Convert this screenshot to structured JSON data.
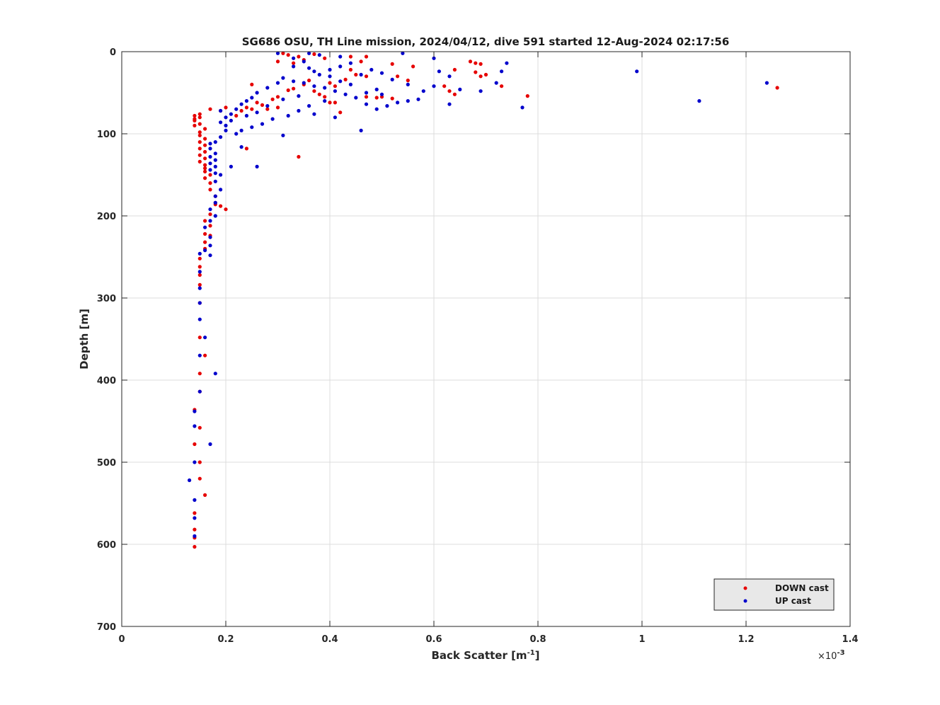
{
  "chart_data": {
    "type": "scatter",
    "title": "SG686 OSU, TH Line mission, 2024/04/12, dive 591 started 12-Aug-2024 02:17:56",
    "xlabel": "Back Scatter [m",
    "xlabel_exponent": "-1",
    "xlabel_suffix": "]",
    "x_multiplier_label": "×10",
    "x_multiplier_exponent": "-3",
    "ylabel": "Depth [m]",
    "xlim": [
      0,
      1.4
    ],
    "ylim": [
      0,
      700
    ],
    "y_reversed": true,
    "grid": true,
    "legend_placement": "bottom-right",
    "x_ticks": [
      "0",
      "0.2",
      "0.4",
      "0.6",
      "0.8",
      "1",
      "1.2",
      "1.4"
    ],
    "y_ticks": [
      "0",
      "100",
      "200",
      "300",
      "400",
      "500",
      "600",
      "700"
    ],
    "series": [
      {
        "name": "DOWN cast",
        "color": "#e60000",
        "points": [
          [
            0.31,
            2
          ],
          [
            0.32,
            4
          ],
          [
            0.34,
            6
          ],
          [
            0.37,
            3
          ],
          [
            0.39,
            8
          ],
          [
            0.3,
            12
          ],
          [
            0.33,
            14
          ],
          [
            0.35,
            10
          ],
          [
            0.44,
            6
          ],
          [
            0.46,
            12
          ],
          [
            0.47,
            6
          ],
          [
            0.52,
            15
          ],
          [
            0.56,
            18
          ],
          [
            0.64,
            22
          ],
          [
            0.67,
            12
          ],
          [
            0.68,
            14
          ],
          [
            0.69,
            15
          ],
          [
            0.68,
            25
          ],
          [
            0.69,
            30
          ],
          [
            0.7,
            28
          ],
          [
            0.62,
            42
          ],
          [
            0.63,
            48
          ],
          [
            0.64,
            52
          ],
          [
            0.73,
            42
          ],
          [
            0.78,
            54
          ],
          [
            1.26,
            44
          ],
          [
            0.53,
            30
          ],
          [
            0.55,
            35
          ],
          [
            0.47,
            30
          ],
          [
            0.45,
            28
          ],
          [
            0.44,
            22
          ],
          [
            0.43,
            34
          ],
          [
            0.41,
            42
          ],
          [
            0.4,
            38
          ],
          [
            0.36,
            35
          ],
          [
            0.35,
            40
          ],
          [
            0.33,
            45
          ],
          [
            0.32,
            47
          ],
          [
            0.37,
            48
          ],
          [
            0.38,
            52
          ],
          [
            0.39,
            55
          ],
          [
            0.47,
            55
          ],
          [
            0.49,
            56
          ],
          [
            0.5,
            55
          ],
          [
            0.52,
            57
          ],
          [
            0.41,
            62
          ],
          [
            0.4,
            62
          ],
          [
            0.42,
            74
          ],
          [
            0.3,
            55
          ],
          [
            0.29,
            58
          ],
          [
            0.27,
            65
          ],
          [
            0.25,
            70
          ],
          [
            0.24,
            68
          ],
          [
            0.23,
            72
          ],
          [
            0.22,
            78
          ],
          [
            0.2,
            68
          ],
          [
            0.19,
            72
          ],
          [
            0.25,
            40
          ],
          [
            0.34,
            128
          ],
          [
            0.24,
            118
          ],
          [
            0.15,
            76
          ],
          [
            0.14,
            78
          ],
          [
            0.15,
            80
          ],
          [
            0.14,
            84
          ],
          [
            0.15,
            88
          ],
          [
            0.14,
            90
          ],
          [
            0.16,
            94
          ],
          [
            0.15,
            98
          ],
          [
            0.15,
            102
          ],
          [
            0.16,
            106
          ],
          [
            0.15,
            110
          ],
          [
            0.16,
            114
          ],
          [
            0.15,
            118
          ],
          [
            0.16,
            122
          ],
          [
            0.15,
            126
          ],
          [
            0.16,
            130
          ],
          [
            0.15,
            134
          ],
          [
            0.16,
            138
          ],
          [
            0.16,
            142
          ],
          [
            0.16,
            146
          ],
          [
            0.17,
            150
          ],
          [
            0.16,
            154
          ],
          [
            0.17,
            160
          ],
          [
            0.17,
            168
          ],
          [
            0.18,
            176
          ],
          [
            0.18,
            184
          ],
          [
            0.19,
            188
          ],
          [
            0.2,
            192
          ],
          [
            0.17,
            198
          ],
          [
            0.16,
            206
          ],
          [
            0.17,
            212
          ],
          [
            0.16,
            222
          ],
          [
            0.16,
            232
          ],
          [
            0.16,
            240
          ],
          [
            0.15,
            252
          ],
          [
            0.15,
            262
          ],
          [
            0.15,
            272
          ],
          [
            0.15,
            284
          ],
          [
            0.15,
            306
          ],
          [
            0.15,
            348
          ],
          [
            0.16,
            370
          ],
          [
            0.15,
            392
          ],
          [
            0.15,
            414
          ],
          [
            0.14,
            436
          ],
          [
            0.15,
            458
          ],
          [
            0.14,
            478
          ],
          [
            0.15,
            500
          ],
          [
            0.15,
            520
          ],
          [
            0.16,
            540
          ],
          [
            0.14,
            562
          ],
          [
            0.14,
            582
          ],
          [
            0.14,
            592
          ],
          [
            0.14,
            603
          ],
          [
            0.17,
            224
          ],
          [
            0.18,
            186
          ],
          [
            0.14,
            82
          ],
          [
            0.17,
            70
          ],
          [
            0.26,
            62
          ],
          [
            0.28,
            70
          ],
          [
            0.3,
            68
          ]
        ]
      },
      {
        "name": "UP cast",
        "color": "#0000cc",
        "points": [
          [
            0.3,
            2
          ],
          [
            0.33,
            8
          ],
          [
            0.36,
            2
          ],
          [
            0.38,
            4
          ],
          [
            0.42,
            6
          ],
          [
            0.54,
            2
          ],
          [
            0.6,
            8
          ],
          [
            0.99,
            24
          ],
          [
            1.24,
            38
          ],
          [
            1.11,
            60
          ],
          [
            0.74,
            14
          ],
          [
            0.73,
            24
          ],
          [
            0.72,
            38
          ],
          [
            0.69,
            48
          ],
          [
            0.65,
            46
          ],
          [
            0.61,
            24
          ],
          [
            0.63,
            30
          ],
          [
            0.6,
            42
          ],
          [
            0.58,
            48
          ],
          [
            0.57,
            58
          ],
          [
            0.55,
            60
          ],
          [
            0.53,
            62
          ],
          [
            0.51,
            66
          ],
          [
            0.49,
            70
          ],
          [
            0.77,
            68
          ],
          [
            0.63,
            64
          ],
          [
            0.47,
            64
          ],
          [
            0.45,
            56
          ],
          [
            0.43,
            52
          ],
          [
            0.41,
            48
          ],
          [
            0.39,
            44
          ],
          [
            0.37,
            42
          ],
          [
            0.35,
            38
          ],
          [
            0.33,
            36
          ],
          [
            0.31,
            32
          ],
          [
            0.3,
            38
          ],
          [
            0.28,
            44
          ],
          [
            0.26,
            50
          ],
          [
            0.25,
            56
          ],
          [
            0.24,
            60
          ],
          [
            0.23,
            64
          ],
          [
            0.22,
            70
          ],
          [
            0.21,
            76
          ],
          [
            0.2,
            80
          ],
          [
            0.19,
            86
          ],
          [
            0.36,
            20
          ],
          [
            0.37,
            24
          ],
          [
            0.38,
            28
          ],
          [
            0.4,
            22
          ],
          [
            0.42,
            18
          ],
          [
            0.44,
            14
          ],
          [
            0.48,
            22
          ],
          [
            0.5,
            26
          ],
          [
            0.52,
            34
          ],
          [
            0.55,
            40
          ],
          [
            0.47,
            50
          ],
          [
            0.49,
            46
          ],
          [
            0.46,
            96
          ],
          [
            0.31,
            102
          ],
          [
            0.26,
            140
          ],
          [
            0.21,
            140
          ],
          [
            0.23,
            116
          ],
          [
            0.41,
            80
          ],
          [
            0.37,
            76
          ],
          [
            0.34,
            72
          ],
          [
            0.32,
            78
          ],
          [
            0.29,
            82
          ],
          [
            0.27,
            88
          ],
          [
            0.25,
            92
          ],
          [
            0.23,
            96
          ],
          [
            0.22,
            100
          ],
          [
            0.2,
            96
          ],
          [
            0.19,
            104
          ],
          [
            0.18,
            110
          ],
          [
            0.17,
            112
          ],
          [
            0.17,
            118
          ],
          [
            0.18,
            124
          ],
          [
            0.17,
            128
          ],
          [
            0.18,
            132
          ],
          [
            0.17,
            136
          ],
          [
            0.18,
            140
          ],
          [
            0.17,
            144
          ],
          [
            0.18,
            148
          ],
          [
            0.19,
            150
          ],
          [
            0.18,
            158
          ],
          [
            0.19,
            168
          ],
          [
            0.18,
            176
          ],
          [
            0.18,
            184
          ],
          [
            0.17,
            192
          ],
          [
            0.18,
            200
          ],
          [
            0.17,
            206
          ],
          [
            0.16,
            214
          ],
          [
            0.17,
            226
          ],
          [
            0.17,
            236
          ],
          [
            0.17,
            248
          ],
          [
            0.16,
            242
          ],
          [
            0.15,
            246
          ],
          [
            0.15,
            268
          ],
          [
            0.15,
            288
          ],
          [
            0.15,
            306
          ],
          [
            0.15,
            326
          ],
          [
            0.16,
            348
          ],
          [
            0.15,
            370
          ],
          [
            0.18,
            392
          ],
          [
            0.15,
            414
          ],
          [
            0.14,
            438
          ],
          [
            0.14,
            456
          ],
          [
            0.17,
            478
          ],
          [
            0.14,
            500
          ],
          [
            0.13,
            522
          ],
          [
            0.14,
            546
          ],
          [
            0.14,
            568
          ],
          [
            0.14,
            590
          ],
          [
            0.19,
            72
          ],
          [
            0.2,
            90
          ],
          [
            0.21,
            84
          ],
          [
            0.24,
            78
          ],
          [
            0.26,
            74
          ],
          [
            0.28,
            66
          ],
          [
            0.31,
            58
          ],
          [
            0.34,
            54
          ],
          [
            0.36,
            66
          ],
          [
            0.39,
            60
          ],
          [
            0.44,
            40
          ],
          [
            0.46,
            28
          ],
          [
            0.35,
            12
          ],
          [
            0.33,
            18
          ],
          [
            0.4,
            30
          ],
          [
            0.42,
            36
          ],
          [
            0.5,
            52
          ]
        ]
      }
    ]
  }
}
